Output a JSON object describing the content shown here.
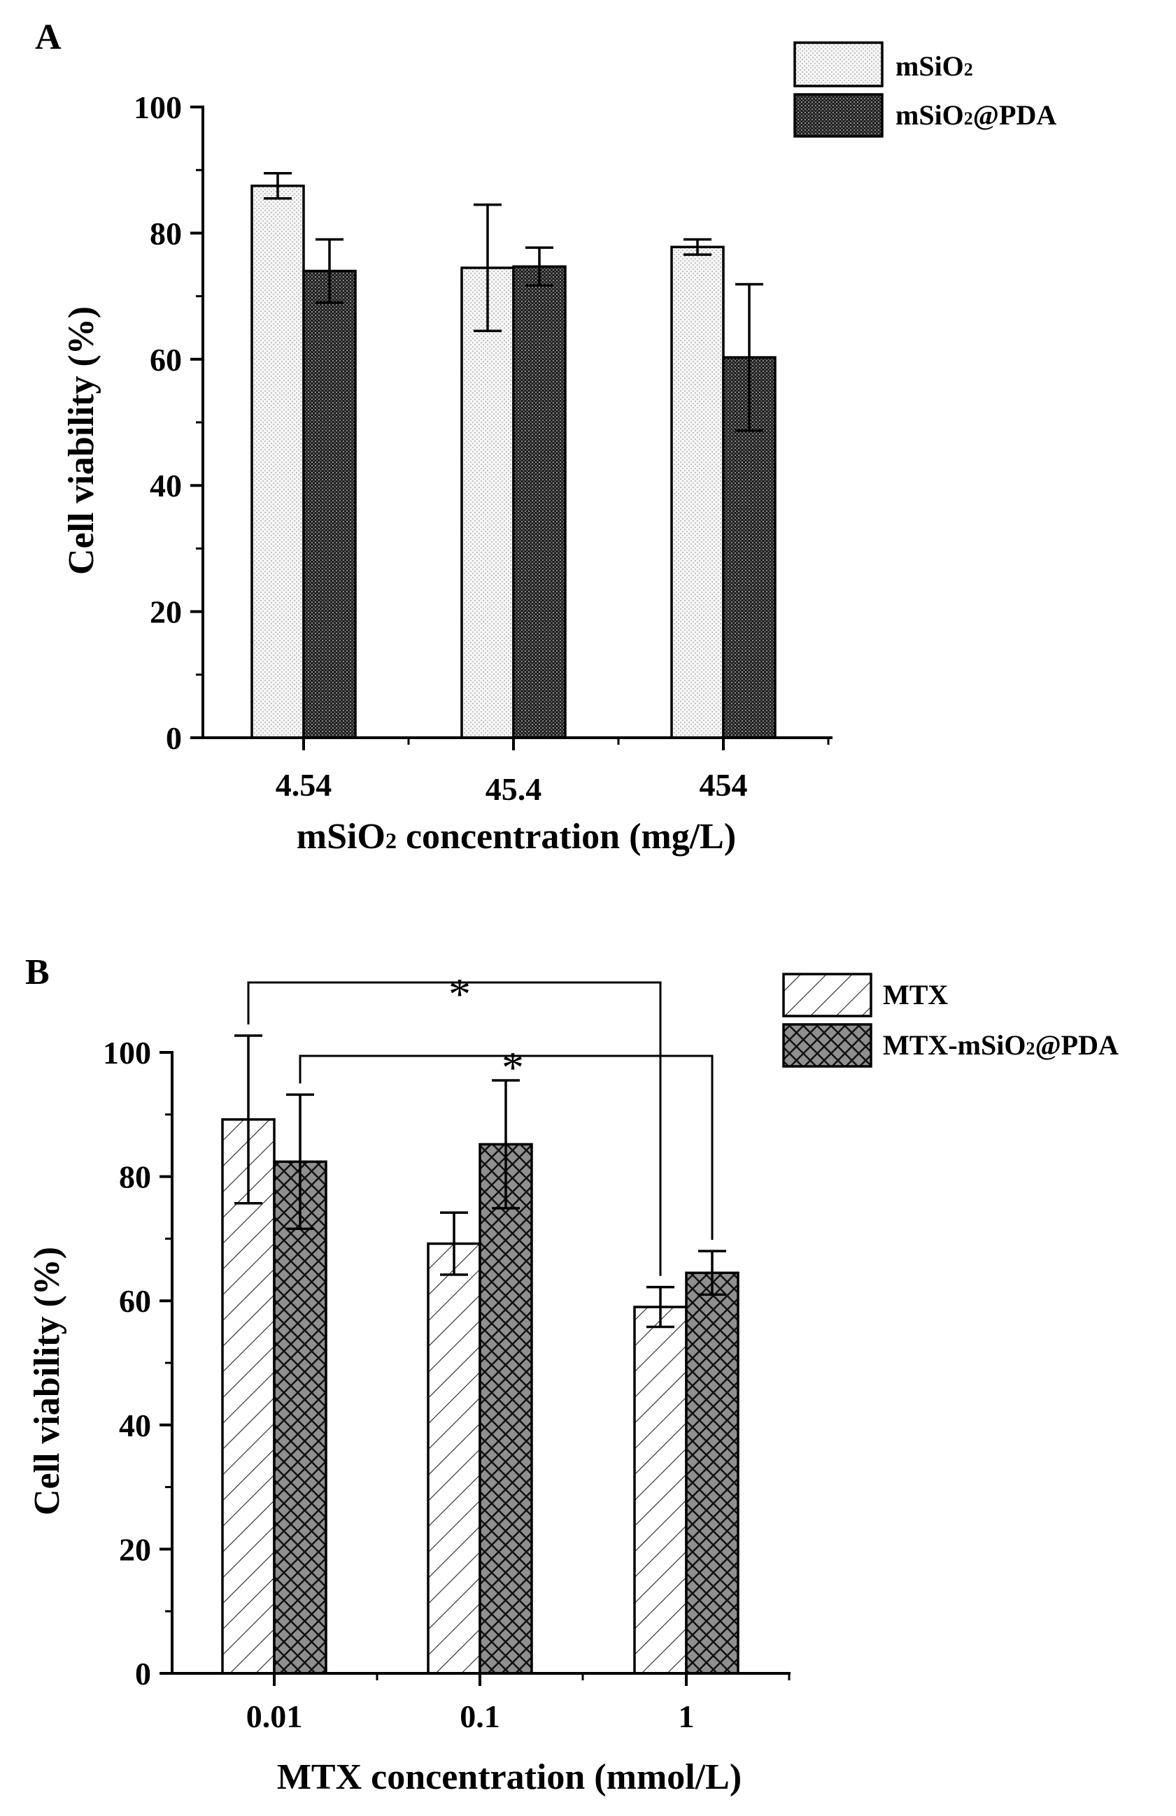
{
  "figure": "two-panel grouped bar chart",
  "chart_data": [
    {
      "panel": "A",
      "type": "bar",
      "title": "",
      "xlabel_parts": [
        "mSiO",
        "2",
        " concentration (mg/L)"
      ],
      "ylabel": "Cell viability (%)",
      "categories": [
        "4.54",
        "45.4",
        "454"
      ],
      "ylim": [
        0,
        100
      ],
      "yticks": [
        0,
        20,
        40,
        60,
        80,
        100
      ],
      "grid": false,
      "legend_position": "top-right",
      "series": [
        {
          "name": "mSiO₂",
          "legend_parts": [
            "mSiO",
            "2",
            ""
          ],
          "pattern": "dots",
          "values": [
            87.5,
            74.5,
            77.8
          ],
          "errors": [
            2.0,
            10.0,
            1.2
          ]
        },
        {
          "name": "mSiO₂@PDA",
          "legend_parts": [
            "mSiO",
            "2",
            "@PDA"
          ],
          "pattern": "dense",
          "values": [
            74.0,
            74.7,
            60.3
          ],
          "errors": [
            5.0,
            3.0,
            11.6
          ]
        }
      ],
      "significance": []
    },
    {
      "panel": "B",
      "type": "bar",
      "title": "",
      "xlabel_parts": [
        "MTX concentration (mmol/L)",
        "",
        ""
      ],
      "ylabel": "Cell viability (%)",
      "categories": [
        "0.01",
        "0.1",
        "1"
      ],
      "ylim": [
        0,
        100
      ],
      "yticks": [
        0,
        20,
        40,
        60,
        80,
        100
      ],
      "grid": false,
      "legend_position": "top-right",
      "series": [
        {
          "name": "MTX",
          "legend_parts": [
            "MTX",
            "",
            ""
          ],
          "pattern": "hatch",
          "values": [
            89.2,
            69.2,
            59.0
          ],
          "errors": [
            13.5,
            5.0,
            3.2
          ]
        },
        {
          "name": "MTX-mSiO₂@PDA",
          "legend_parts": [
            "MTX-mSiO",
            "2",
            "@PDA"
          ],
          "pattern": "cross",
          "values": [
            82.4,
            85.2,
            64.5
          ],
          "errors": [
            10.8,
            10.3,
            3.5
          ]
        }
      ],
      "significance": [
        {
          "label": "*",
          "from": {
            "series": 0,
            "category": 0
          },
          "to": {
            "series": 0,
            "category": 2
          }
        },
        {
          "label": "*",
          "from": {
            "series": 1,
            "category": 0
          },
          "to": {
            "series": 1,
            "category": 2
          }
        }
      ]
    }
  ]
}
